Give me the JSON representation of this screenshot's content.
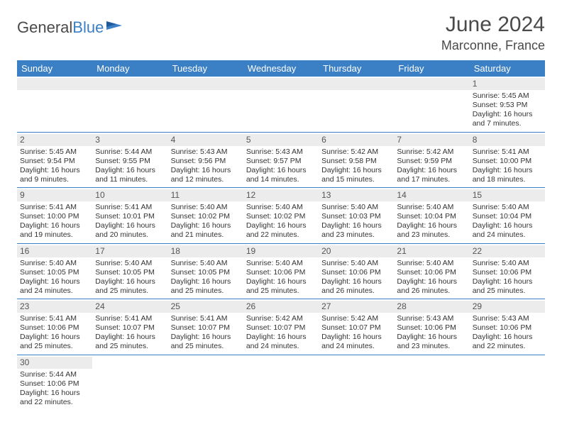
{
  "logo": {
    "word1": "General",
    "word2": "Blue"
  },
  "title": "June 2024",
  "location": "Marconne, France",
  "header_bg": "#3b7fc4",
  "header_fg": "#ffffff",
  "daynum_bg": "#ececec",
  "row_border": "#3b7fc4",
  "days": [
    "Sunday",
    "Monday",
    "Tuesday",
    "Wednesday",
    "Thursday",
    "Friday",
    "Saturday"
  ],
  "weeks": [
    [
      {
        "n": "",
        "empty": true
      },
      {
        "n": "",
        "empty": true
      },
      {
        "n": "",
        "empty": true
      },
      {
        "n": "",
        "empty": true
      },
      {
        "n": "",
        "empty": true
      },
      {
        "n": "",
        "empty": true
      },
      {
        "n": "1",
        "sr": "Sunrise: 5:45 AM",
        "ss": "Sunset: 9:53 PM",
        "d1": "Daylight: 16 hours",
        "d2": "and 7 minutes."
      }
    ],
    [
      {
        "n": "2",
        "sr": "Sunrise: 5:45 AM",
        "ss": "Sunset: 9:54 PM",
        "d1": "Daylight: 16 hours",
        "d2": "and 9 minutes."
      },
      {
        "n": "3",
        "sr": "Sunrise: 5:44 AM",
        "ss": "Sunset: 9:55 PM",
        "d1": "Daylight: 16 hours",
        "d2": "and 11 minutes."
      },
      {
        "n": "4",
        "sr": "Sunrise: 5:43 AM",
        "ss": "Sunset: 9:56 PM",
        "d1": "Daylight: 16 hours",
        "d2": "and 12 minutes."
      },
      {
        "n": "5",
        "sr": "Sunrise: 5:43 AM",
        "ss": "Sunset: 9:57 PM",
        "d1": "Daylight: 16 hours",
        "d2": "and 14 minutes."
      },
      {
        "n": "6",
        "sr": "Sunrise: 5:42 AM",
        "ss": "Sunset: 9:58 PM",
        "d1": "Daylight: 16 hours",
        "d2": "and 15 minutes."
      },
      {
        "n": "7",
        "sr": "Sunrise: 5:42 AM",
        "ss": "Sunset: 9:59 PM",
        "d1": "Daylight: 16 hours",
        "d2": "and 17 minutes."
      },
      {
        "n": "8",
        "sr": "Sunrise: 5:41 AM",
        "ss": "Sunset: 10:00 PM",
        "d1": "Daylight: 16 hours",
        "d2": "and 18 minutes."
      }
    ],
    [
      {
        "n": "9",
        "sr": "Sunrise: 5:41 AM",
        "ss": "Sunset: 10:00 PM",
        "d1": "Daylight: 16 hours",
        "d2": "and 19 minutes."
      },
      {
        "n": "10",
        "sr": "Sunrise: 5:41 AM",
        "ss": "Sunset: 10:01 PM",
        "d1": "Daylight: 16 hours",
        "d2": "and 20 minutes."
      },
      {
        "n": "11",
        "sr": "Sunrise: 5:40 AM",
        "ss": "Sunset: 10:02 PM",
        "d1": "Daylight: 16 hours",
        "d2": "and 21 minutes."
      },
      {
        "n": "12",
        "sr": "Sunrise: 5:40 AM",
        "ss": "Sunset: 10:02 PM",
        "d1": "Daylight: 16 hours",
        "d2": "and 22 minutes."
      },
      {
        "n": "13",
        "sr": "Sunrise: 5:40 AM",
        "ss": "Sunset: 10:03 PM",
        "d1": "Daylight: 16 hours",
        "d2": "and 23 minutes."
      },
      {
        "n": "14",
        "sr": "Sunrise: 5:40 AM",
        "ss": "Sunset: 10:04 PM",
        "d1": "Daylight: 16 hours",
        "d2": "and 23 minutes."
      },
      {
        "n": "15",
        "sr": "Sunrise: 5:40 AM",
        "ss": "Sunset: 10:04 PM",
        "d1": "Daylight: 16 hours",
        "d2": "and 24 minutes."
      }
    ],
    [
      {
        "n": "16",
        "sr": "Sunrise: 5:40 AM",
        "ss": "Sunset: 10:05 PM",
        "d1": "Daylight: 16 hours",
        "d2": "and 24 minutes."
      },
      {
        "n": "17",
        "sr": "Sunrise: 5:40 AM",
        "ss": "Sunset: 10:05 PM",
        "d1": "Daylight: 16 hours",
        "d2": "and 25 minutes."
      },
      {
        "n": "18",
        "sr": "Sunrise: 5:40 AM",
        "ss": "Sunset: 10:05 PM",
        "d1": "Daylight: 16 hours",
        "d2": "and 25 minutes."
      },
      {
        "n": "19",
        "sr": "Sunrise: 5:40 AM",
        "ss": "Sunset: 10:06 PM",
        "d1": "Daylight: 16 hours",
        "d2": "and 25 minutes."
      },
      {
        "n": "20",
        "sr": "Sunrise: 5:40 AM",
        "ss": "Sunset: 10:06 PM",
        "d1": "Daylight: 16 hours",
        "d2": "and 26 minutes."
      },
      {
        "n": "21",
        "sr": "Sunrise: 5:40 AM",
        "ss": "Sunset: 10:06 PM",
        "d1": "Daylight: 16 hours",
        "d2": "and 26 minutes."
      },
      {
        "n": "22",
        "sr": "Sunrise: 5:40 AM",
        "ss": "Sunset: 10:06 PM",
        "d1": "Daylight: 16 hours",
        "d2": "and 25 minutes."
      }
    ],
    [
      {
        "n": "23",
        "sr": "Sunrise: 5:41 AM",
        "ss": "Sunset: 10:06 PM",
        "d1": "Daylight: 16 hours",
        "d2": "and 25 minutes."
      },
      {
        "n": "24",
        "sr": "Sunrise: 5:41 AM",
        "ss": "Sunset: 10:07 PM",
        "d1": "Daylight: 16 hours",
        "d2": "and 25 minutes."
      },
      {
        "n": "25",
        "sr": "Sunrise: 5:41 AM",
        "ss": "Sunset: 10:07 PM",
        "d1": "Daylight: 16 hours",
        "d2": "and 25 minutes."
      },
      {
        "n": "26",
        "sr": "Sunrise: 5:42 AM",
        "ss": "Sunset: 10:07 PM",
        "d1": "Daylight: 16 hours",
        "d2": "and 24 minutes."
      },
      {
        "n": "27",
        "sr": "Sunrise: 5:42 AM",
        "ss": "Sunset: 10:07 PM",
        "d1": "Daylight: 16 hours",
        "d2": "and 24 minutes."
      },
      {
        "n": "28",
        "sr": "Sunrise: 5:43 AM",
        "ss": "Sunset: 10:06 PM",
        "d1": "Daylight: 16 hours",
        "d2": "and 23 minutes."
      },
      {
        "n": "29",
        "sr": "Sunrise: 5:43 AM",
        "ss": "Sunset: 10:06 PM",
        "d1": "Daylight: 16 hours",
        "d2": "and 22 minutes."
      }
    ],
    [
      {
        "n": "30",
        "sr": "Sunrise: 5:44 AM",
        "ss": "Sunset: 10:06 PM",
        "d1": "Daylight: 16 hours",
        "d2": "and 22 minutes."
      },
      {
        "n": "",
        "empty": true
      },
      {
        "n": "",
        "empty": true
      },
      {
        "n": "",
        "empty": true
      },
      {
        "n": "",
        "empty": true
      },
      {
        "n": "",
        "empty": true
      },
      {
        "n": "",
        "empty": true
      }
    ]
  ]
}
